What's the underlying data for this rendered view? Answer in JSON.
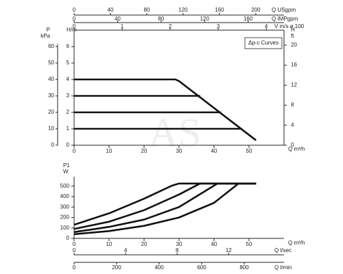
{
  "watermark": "AS",
  "chart_data": [
    {
      "type": "line",
      "legend_text": "Δp-c Curves",
      "xlabel": "Q m³/h",
      "ylabel": "H/m",
      "xlim": [
        0,
        60
      ],
      "xticks": [
        0,
        10,
        20,
        30,
        40,
        50
      ],
      "ylim": [
        0,
        7
      ],
      "yticks": [
        0,
        1,
        2,
        3,
        4,
        5,
        6
      ],
      "series": [
        {
          "color": "#111111",
          "x": [
            0,
            29,
            30,
            52
          ],
          "values": [
            4,
            4,
            3.9,
            0.3
          ]
        },
        {
          "color": "#111111",
          "x": [
            0,
            36
          ],
          "values": [
            3,
            3
          ]
        },
        {
          "color": "#111111",
          "x": [
            0,
            42
          ],
          "values": [
            2,
            2
          ]
        },
        {
          "color": "#111111",
          "x": [
            0,
            48
          ],
          "values": [
            1,
            1
          ]
        }
      ],
      "axes": [
        {
          "side": "top",
          "label": "Q USgpm",
          "lim": [
            0,
            231
          ],
          "ticks": [
            0,
            40,
            80,
            120,
            160,
            200
          ]
        },
        {
          "side": "top",
          "label": "Q IMPgpm",
          "lim": [
            0,
            193
          ],
          "ticks": [
            0,
            40,
            80,
            120,
            160
          ]
        },
        {
          "side": "top",
          "label": "V m/s ø 100",
          "lim": [
            0,
            4.37
          ],
          "ticks": [
            0,
            1,
            2,
            3,
            4
          ]
        },
        {
          "side": "left",
          "label": [
            "P",
            "kPa"
          ],
          "lim": [
            0,
            70
          ],
          "ticks": [
            0,
            10,
            20,
            30,
            40,
            50,
            60
          ]
        },
        {
          "side": "right",
          "label": [
            "H",
            "ft"
          ],
          "lim": [
            0,
            23
          ],
          "ticks": [
            0,
            4,
            8,
            12,
            16,
            20
          ]
        }
      ]
    },
    {
      "type": "line",
      "xlabel": "Q m³/h",
      "ylabel": [
        "P1",
        "W"
      ],
      "xlim": [
        0,
        60
      ],
      "xticks": [
        0,
        10,
        20,
        30,
        40,
        50
      ],
      "ylim": [
        0,
        590
      ],
      "yticks": [
        0,
        100,
        200,
        300,
        400,
        500
      ],
      "series": [
        {
          "color": "#111111",
          "x": [
            0,
            10,
            20,
            28,
            30,
            52
          ],
          "values": [
            130,
            240,
            380,
            505,
            525,
            525
          ]
        },
        {
          "color": "#111111",
          "x": [
            0,
            10,
            20,
            30,
            36,
            52
          ],
          "values": [
            90,
            160,
            270,
            420,
            525,
            525
          ]
        },
        {
          "color": "#111111",
          "x": [
            0,
            10,
            20,
            30,
            41,
            52
          ],
          "values": [
            60,
            110,
            180,
            300,
            525,
            525
          ]
        },
        {
          "color": "#111111",
          "x": [
            0,
            10,
            20,
            30,
            40,
            47,
            52
          ],
          "values": [
            40,
            70,
            120,
            200,
            340,
            525,
            525
          ]
        }
      ],
      "axes": [
        {
          "side": "bottom",
          "label": "Q l/sec",
          "lim": [
            0,
            16.3
          ],
          "ticks": [
            0,
            4,
            8,
            12
          ]
        },
        {
          "side": "bottom",
          "label": "Q l/min",
          "lim": [
            0,
            987
          ],
          "ticks": [
            0,
            200,
            400,
            600,
            800
          ]
        }
      ]
    }
  ]
}
